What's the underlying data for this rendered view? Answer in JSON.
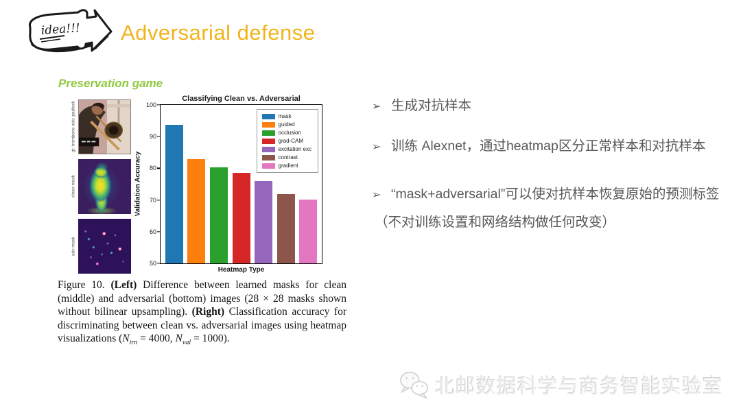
{
  "header": {
    "icon_text": "idea!!!",
    "title": "Adversarial defense"
  },
  "subtitle": "Preservation game",
  "figure": {
    "images": [
      {
        "label": "gt: trombone adv: padlock",
        "kind": "photo"
      },
      {
        "label": "clean mask",
        "kind": "heatmap"
      },
      {
        "label": "adv mask",
        "kind": "heatmap"
      }
    ],
    "caption_segments": [
      {
        "t": "Figure 10. "
      },
      {
        "t": "(Left)",
        "b": true
      },
      {
        "t": " Difference between learned masks for clean (middle) and adversarial (bottom) images (28 × 28 masks shown without bilinear upsampling).  "
      },
      {
        "t": "(Right)",
        "b": true
      },
      {
        "t": " Classification accuracy for discriminating between clean vs.  adversarial images using heatmap visualizations ("
      },
      {
        "t": "N",
        "i": true
      },
      {
        "t": "trn",
        "i": true,
        "sub": true
      },
      {
        "t": " = 4000, "
      },
      {
        "t": "N",
        "i": true
      },
      {
        "t": "val",
        "i": true,
        "sub": true
      },
      {
        "t": " = 1000)."
      }
    ]
  },
  "chart_data": {
    "type": "bar",
    "title": "Classifying Clean vs. Adversarial",
    "xlabel": "Heatmap Type",
    "ylabel": "Validation Accuracy",
    "ylim": [
      50,
      100
    ],
    "yticks": [
      50,
      60,
      70,
      80,
      90,
      100
    ],
    "grid": false,
    "legend_position": "upper right",
    "categories": [
      "mask",
      "guided",
      "occlusion",
      "grad-CAM",
      "excitation exc",
      "contrast",
      "gradient"
    ],
    "values": [
      93.7,
      83.0,
      80.4,
      78.6,
      76.0,
      71.8,
      70.1
    ],
    "colors": [
      "#1f77b4",
      "#ff7f0e",
      "#2ca02c",
      "#d62728",
      "#9467bd",
      "#8c564b",
      "#e377c2"
    ]
  },
  "bullets": {
    "marker": "➢",
    "items": [
      {
        "text": "生成对抗样本"
      },
      {
        "text": "训练 Alexnet，通过heatmap区分正常样本和对抗样本"
      },
      {
        "text": "“mask+adversarial”可以使对抗样本恢复原始的预测标签",
        "note": "（不对训练设置和网络结构做任何改变）"
      }
    ]
  },
  "watermark": {
    "text": "北邮数据科学与商务智能实验室"
  },
  "colors": {
    "title": "#F2B31B",
    "subtitle": "#90C93F",
    "bullet_text": "#595959",
    "watermark": "#F0F0F0"
  }
}
